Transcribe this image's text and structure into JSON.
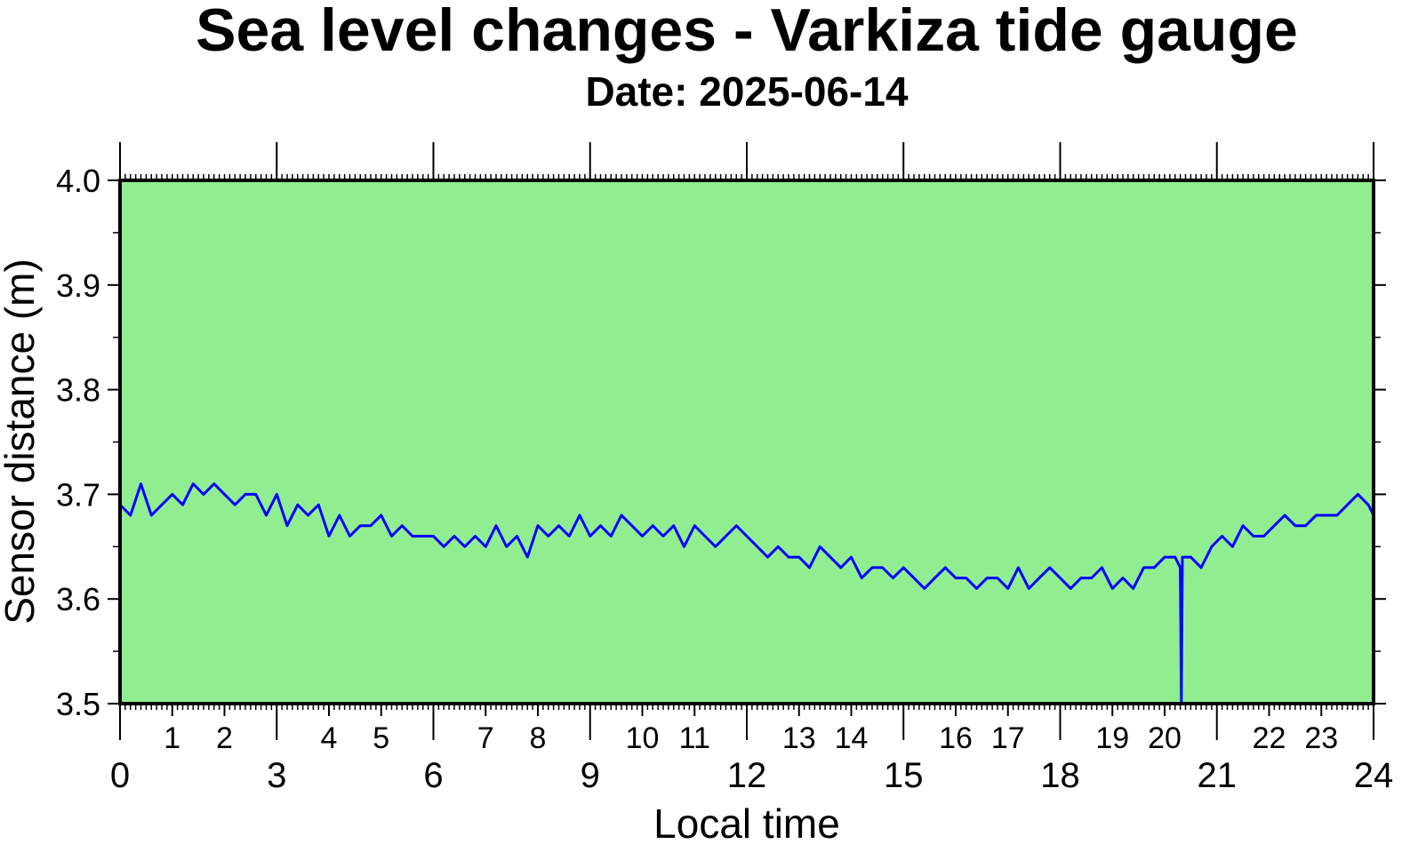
{
  "chart_data": {
    "type": "line",
    "title": "Sea level changes - Varkiza tide gauge",
    "subtitle": "Date: 2025-06-14",
    "xlabel": "Local time",
    "ylabel": "Sensor distance (m)",
    "xlim": [
      0,
      24
    ],
    "ylim": [
      3.5,
      4.0
    ],
    "grid": false,
    "colors": {
      "background": "#90ee90",
      "series": "#0000ff",
      "frame": "#000000"
    },
    "x_major_ticks": [
      "0",
      "3",
      "6",
      "9",
      "12",
      "15",
      "18",
      "21",
      "24"
    ],
    "x_minor_ticks": [
      "1",
      "2",
      "4",
      "5",
      "7",
      "8",
      "10",
      "11",
      "13",
      "14",
      "16",
      "17",
      "19",
      "20",
      "22",
      "23"
    ],
    "y_ticks": [
      "3.5",
      "3.6",
      "3.7",
      "3.8",
      "3.9",
      "4.0"
    ],
    "series": [
      {
        "x": [
          0,
          0.2,
          0.4,
          0.6,
          0.8,
          1.0,
          1.2,
          1.4,
          1.6,
          1.8,
          2.0,
          2.2,
          2.4,
          2.6,
          2.8,
          3.0,
          3.2,
          3.4,
          3.6,
          3.8,
          4.0,
          4.2,
          4.4,
          4.6,
          4.8,
          5.0,
          5.2,
          5.4,
          5.6,
          5.8,
          6.0,
          6.2,
          6.4,
          6.6,
          6.8,
          7.0,
          7.2,
          7.4,
          7.6,
          7.8,
          8.0,
          8.2,
          8.4,
          8.6,
          8.8,
          9.0,
          9.2,
          9.4,
          9.6,
          9.8,
          10.0,
          10.2,
          10.4,
          10.6,
          10.8,
          11.0,
          11.2,
          11.4,
          11.6,
          11.8,
          12.0,
          12.2,
          12.4,
          12.6,
          12.8,
          13.0,
          13.2,
          13.4,
          13.6,
          13.8,
          14.0,
          14.2,
          14.4,
          14.6,
          14.8,
          15.0,
          15.2,
          15.4,
          15.6,
          15.8,
          16.0,
          16.2,
          16.4,
          16.6,
          16.8,
          17.0,
          17.2,
          17.4,
          17.6,
          17.8,
          18.0,
          18.2,
          18.4,
          18.6,
          18.8,
          19.0,
          19.2,
          19.4,
          19.6,
          19.8,
          20.0,
          20.2,
          20.3,
          20.32,
          20.34,
          20.5,
          20.7,
          20.9,
          21.1,
          21.3,
          21.5,
          21.7,
          21.9,
          22.1,
          22.3,
          22.5,
          22.7,
          22.9,
          23.1,
          23.3,
          23.5,
          23.7,
          23.9,
          24.0
        ],
        "y": [
          3.69,
          3.68,
          3.71,
          3.68,
          3.69,
          3.7,
          3.69,
          3.71,
          3.7,
          3.71,
          3.7,
          3.69,
          3.7,
          3.7,
          3.68,
          3.7,
          3.67,
          3.69,
          3.68,
          3.69,
          3.66,
          3.68,
          3.66,
          3.67,
          3.67,
          3.68,
          3.66,
          3.67,
          3.66,
          3.66,
          3.66,
          3.65,
          3.66,
          3.65,
          3.66,
          3.65,
          3.67,
          3.65,
          3.66,
          3.64,
          3.67,
          3.66,
          3.67,
          3.66,
          3.68,
          3.66,
          3.67,
          3.66,
          3.68,
          3.67,
          3.66,
          3.67,
          3.66,
          3.67,
          3.65,
          3.67,
          3.66,
          3.65,
          3.66,
          3.67,
          3.66,
          3.65,
          3.64,
          3.65,
          3.64,
          3.64,
          3.63,
          3.65,
          3.64,
          3.63,
          3.64,
          3.62,
          3.63,
          3.63,
          3.62,
          3.63,
          3.62,
          3.61,
          3.62,
          3.63,
          3.62,
          3.62,
          3.61,
          3.62,
          3.62,
          3.61,
          3.63,
          3.61,
          3.62,
          3.63,
          3.62,
          3.61,
          3.62,
          3.62,
          3.63,
          3.61,
          3.62,
          3.61,
          3.63,
          3.63,
          3.64,
          3.64,
          3.63,
          3.5,
          3.64,
          3.64,
          3.63,
          3.65,
          3.66,
          3.65,
          3.67,
          3.66,
          3.66,
          3.67,
          3.68,
          3.67,
          3.67,
          3.68,
          3.68,
          3.68,
          3.69,
          3.7,
          3.69,
          3.68
        ]
      }
    ]
  }
}
